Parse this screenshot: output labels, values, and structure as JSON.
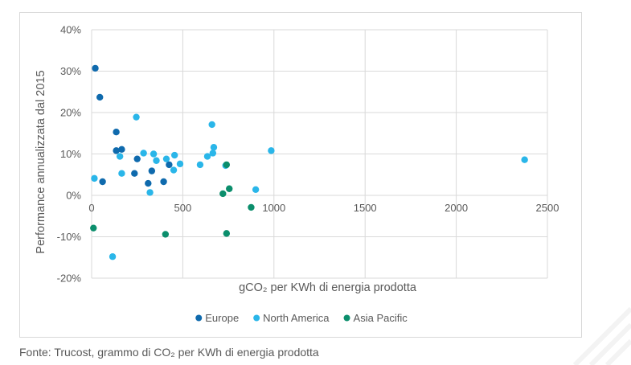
{
  "chart_data": {
    "type": "scatter",
    "title": "",
    "xlabel": "gCO₂ per KWh di energia prodotta",
    "ylabel": "Performance annualizzata dal 2015",
    "xlim": [
      0,
      2500
    ],
    "ylim": [
      -20,
      40
    ],
    "x_ticks": [
      0,
      500,
      1000,
      1500,
      2000,
      2500
    ],
    "y_ticks": [
      -20,
      -10,
      0,
      10,
      20,
      30,
      40
    ],
    "y_tick_suffix": "%",
    "grid": "vertical and horizontal",
    "legend_position": "bottom",
    "series": [
      {
        "name": "Europe",
        "color": "#0f6aad",
        "points": [
          [
            20,
            30.7
          ],
          [
            45,
            23.7
          ],
          [
            60,
            3.3
          ],
          [
            135,
            15.3
          ],
          [
            135,
            10.8
          ],
          [
            165,
            11.1
          ],
          [
            235,
            5.3
          ],
          [
            250,
            8.8
          ],
          [
            310,
            2.9
          ],
          [
            330,
            5.9
          ],
          [
            395,
            3.3
          ],
          [
            425,
            7.4
          ]
        ]
      },
      {
        "name": "North America",
        "color": "#2ab6e9",
        "points": [
          [
            15,
            4.1
          ],
          [
            155,
            9.4
          ],
          [
            165,
            5.3
          ],
          [
            245,
            18.9
          ],
          [
            285,
            10.2
          ],
          [
            320,
            0.7
          ],
          [
            340,
            10.0
          ],
          [
            355,
            8.4
          ],
          [
            410,
            8.8
          ],
          [
            450,
            6.1
          ],
          [
            455,
            9.7
          ],
          [
            485,
            7.6
          ],
          [
            595,
            7.4
          ],
          [
            635,
            9.4
          ],
          [
            660,
            17.1
          ],
          [
            665,
            10.2
          ],
          [
            670,
            11.6
          ],
          [
            735,
            7.2
          ],
          [
            900,
            1.4
          ],
          [
            985,
            10.8
          ],
          [
            2375,
            8.6
          ],
          [
            115,
            -14.8
          ]
        ]
      },
      {
        "name": "Asia Pacific",
        "color": "#0b8e6c",
        "points": [
          [
            10,
            -7.9
          ],
          [
            405,
            -9.4
          ],
          [
            720,
            0.4
          ],
          [
            740,
            7.4
          ],
          [
            740,
            -9.2
          ],
          [
            755,
            1.6
          ],
          [
            875,
            -2.9
          ]
        ]
      }
    ]
  },
  "source_note": "Fonte: Trucost, grammo di CO₂ per KWh di energia prodotta"
}
